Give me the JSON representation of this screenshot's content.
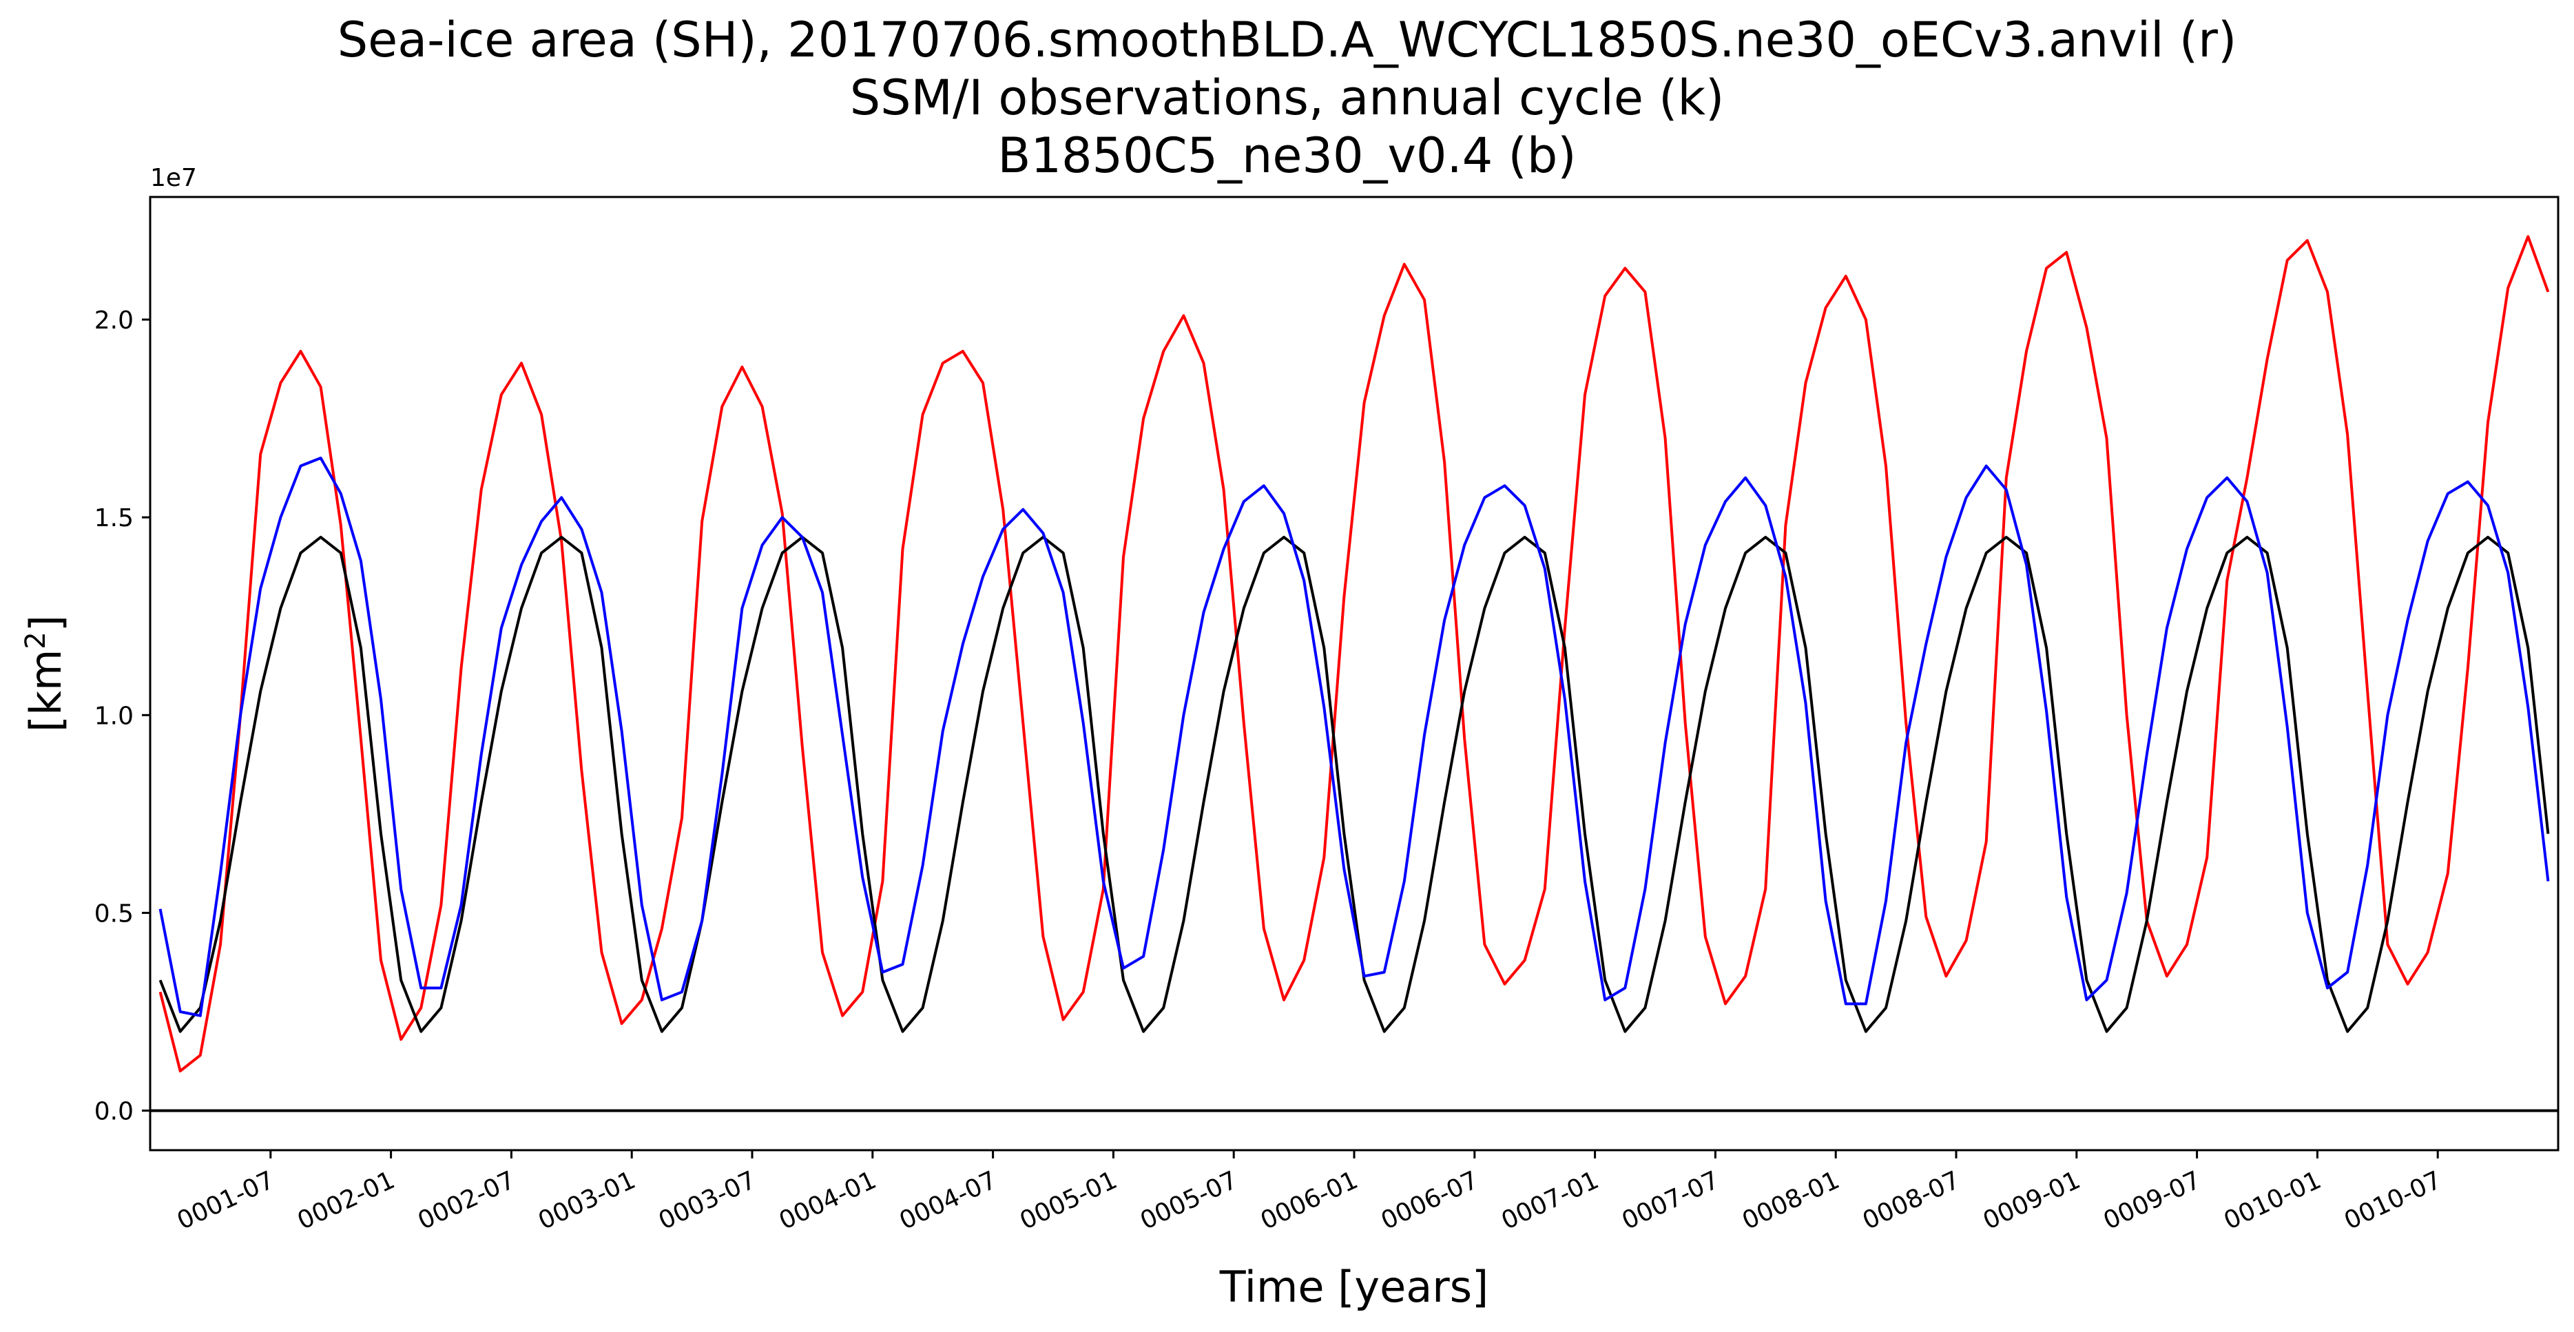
{
  "chart_data": {
    "type": "line",
    "title_lines": [
      "Sea-ice area (SH), 20170706.smoothBLD.A_WCYCL1850S.ne30_oECv3.anvil (r)",
      "SSM/I observations, annual cycle (k)",
      "B1850C5_ne30_v0.4 (b)"
    ],
    "xlabel": "Time [years]",
    "ylabel": "[km²]",
    "y_offset_label": "1e7",
    "ylim": [
      -0.1,
      2.31
    ],
    "xlim": [
      0,
      120
    ],
    "yticks": [
      0.0,
      0.5,
      1.0,
      1.5,
      2.0
    ],
    "ytick_labels": [
      "0.0",
      "0.5",
      "1.0",
      "1.5",
      "2.0"
    ],
    "xticks": [
      6,
      12,
      18,
      24,
      30,
      36,
      42,
      48,
      54,
      60,
      66,
      72,
      78,
      84,
      90,
      96,
      102,
      108,
      114
    ],
    "xtick_labels": [
      "0001-07",
      "0002-01",
      "0002-07",
      "0003-01",
      "0003-07",
      "0004-01",
      "0004-07",
      "0005-01",
      "0005-07",
      "0006-01",
      "0006-07",
      "0007-01",
      "0007-07",
      "0008-01",
      "0008-07",
      "0009-01",
      "0009-07",
      "0010-01",
      "0010-07"
    ],
    "zero_line": true,
    "series": [
      {
        "name": "20170706.smoothBLD.A_WCYCL1850S.ne30_oECv3.anvil (r)",
        "color": "#ff0000",
        "note": "monthly values, units of 1e7 km²",
        "values": [
          0.3,
          0.1,
          0.14,
          0.42,
          1.0,
          1.66,
          1.84,
          1.92,
          1.83,
          1.48,
          0.94,
          0.38,
          0.18,
          0.26,
          0.52,
          1.12,
          1.57,
          1.81,
          1.89,
          1.76,
          1.44,
          0.86,
          0.4,
          0.22,
          0.28,
          0.46,
          0.74,
          1.49,
          1.78,
          1.88,
          1.78,
          1.51,
          0.92,
          0.4,
          0.24,
          0.3,
          0.58,
          1.42,
          1.76,
          1.89,
          1.92,
          1.84,
          1.52,
          0.98,
          0.44,
          0.23,
          0.3,
          0.56,
          1.4,
          1.75,
          1.92,
          2.01,
          1.89,
          1.57,
          0.98,
          0.46,
          0.28,
          0.38,
          0.64,
          1.3,
          1.79,
          2.01,
          2.14,
          2.05,
          1.64,
          0.94,
          0.42,
          0.32,
          0.38,
          0.56,
          1.22,
          1.81,
          2.06,
          2.13,
          2.07,
          1.7,
          0.98,
          0.44,
          0.27,
          0.34,
          0.56,
          1.48,
          1.84,
          2.03,
          2.11,
          2.0,
          1.63,
          0.98,
          0.49,
          0.34,
          0.43,
          0.68,
          1.6,
          1.92,
          2.13,
          2.17,
          1.98,
          1.7,
          1.0,
          0.48,
          0.34,
          0.42,
          0.64,
          1.34,
          1.6,
          1.9,
          2.15,
          2.2,
          2.07,
          1.71,
          1.06,
          0.42,
          0.32,
          0.4,
          0.6,
          1.12,
          1.74,
          2.08,
          2.21,
          2.07
        ]
      },
      {
        "name": "SSM/I observations, annual cycle (k)",
        "color": "#000000",
        "note": "monthly values, units of 1e7 km²",
        "values": [
          0.33,
          0.2,
          0.26,
          0.48,
          0.78,
          1.06,
          1.27,
          1.41,
          1.45,
          1.41,
          1.17,
          0.7,
          0.33,
          0.2,
          0.26,
          0.48,
          0.78,
          1.06,
          1.27,
          1.41,
          1.45,
          1.41,
          1.17,
          0.7,
          0.33,
          0.2,
          0.26,
          0.48,
          0.78,
          1.06,
          1.27,
          1.41,
          1.45,
          1.41,
          1.17,
          0.7,
          0.33,
          0.2,
          0.26,
          0.48,
          0.78,
          1.06,
          1.27,
          1.41,
          1.45,
          1.41,
          1.17,
          0.7,
          0.33,
          0.2,
          0.26,
          0.48,
          0.78,
          1.06,
          1.27,
          1.41,
          1.45,
          1.41,
          1.17,
          0.7,
          0.33,
          0.2,
          0.26,
          0.48,
          0.78,
          1.06,
          1.27,
          1.41,
          1.45,
          1.41,
          1.17,
          0.7,
          0.33,
          0.2,
          0.26,
          0.48,
          0.78,
          1.06,
          1.27,
          1.41,
          1.45,
          1.41,
          1.17,
          0.7,
          0.33,
          0.2,
          0.26,
          0.48,
          0.78,
          1.06,
          1.27,
          1.41,
          1.45,
          1.41,
          1.17,
          0.7,
          0.33,
          0.2,
          0.26,
          0.48,
          0.78,
          1.06,
          1.27,
          1.41,
          1.45,
          1.41,
          1.17,
          0.7,
          0.33,
          0.2,
          0.26,
          0.48,
          0.78,
          1.06,
          1.27,
          1.41,
          1.45,
          1.41,
          1.17,
          0.7
        ]
      },
      {
        "name": "B1850C5_ne30_v0.4 (b)",
        "color": "#0000ff",
        "note": "monthly values, units of 1e7 km²",
        "values": [
          0.51,
          0.25,
          0.24,
          0.6,
          1.0,
          1.32,
          1.5,
          1.63,
          1.65,
          1.56,
          1.39,
          1.04,
          0.56,
          0.31,
          0.31,
          0.52,
          0.9,
          1.22,
          1.38,
          1.49,
          1.55,
          1.47,
          1.31,
          0.96,
          0.52,
          0.28,
          0.3,
          0.48,
          0.85,
          1.27,
          1.43,
          1.5,
          1.45,
          1.31,
          0.95,
          0.59,
          0.35,
          0.37,
          0.62,
          0.96,
          1.18,
          1.35,
          1.47,
          1.52,
          1.46,
          1.31,
          0.98,
          0.58,
          0.36,
          0.39,
          0.66,
          1.0,
          1.26,
          1.42,
          1.54,
          1.58,
          1.51,
          1.34,
          1.02,
          0.61,
          0.34,
          0.35,
          0.58,
          0.95,
          1.24,
          1.43,
          1.55,
          1.58,
          1.53,
          1.37,
          1.04,
          0.58,
          0.28,
          0.31,
          0.56,
          0.93,
          1.23,
          1.43,
          1.54,
          1.6,
          1.53,
          1.35,
          1.03,
          0.53,
          0.27,
          0.27,
          0.53,
          0.93,
          1.18,
          1.4,
          1.55,
          1.63,
          1.57,
          1.38,
          1.01,
          0.54,
          0.28,
          0.33,
          0.55,
          0.9,
          1.22,
          1.42,
          1.55,
          1.6,
          1.54,
          1.36,
          0.97,
          0.5,
          0.31,
          0.35,
          0.62,
          1.0,
          1.24,
          1.44,
          1.56,
          1.59,
          1.53,
          1.36,
          1.02,
          0.58
        ]
      }
    ]
  }
}
